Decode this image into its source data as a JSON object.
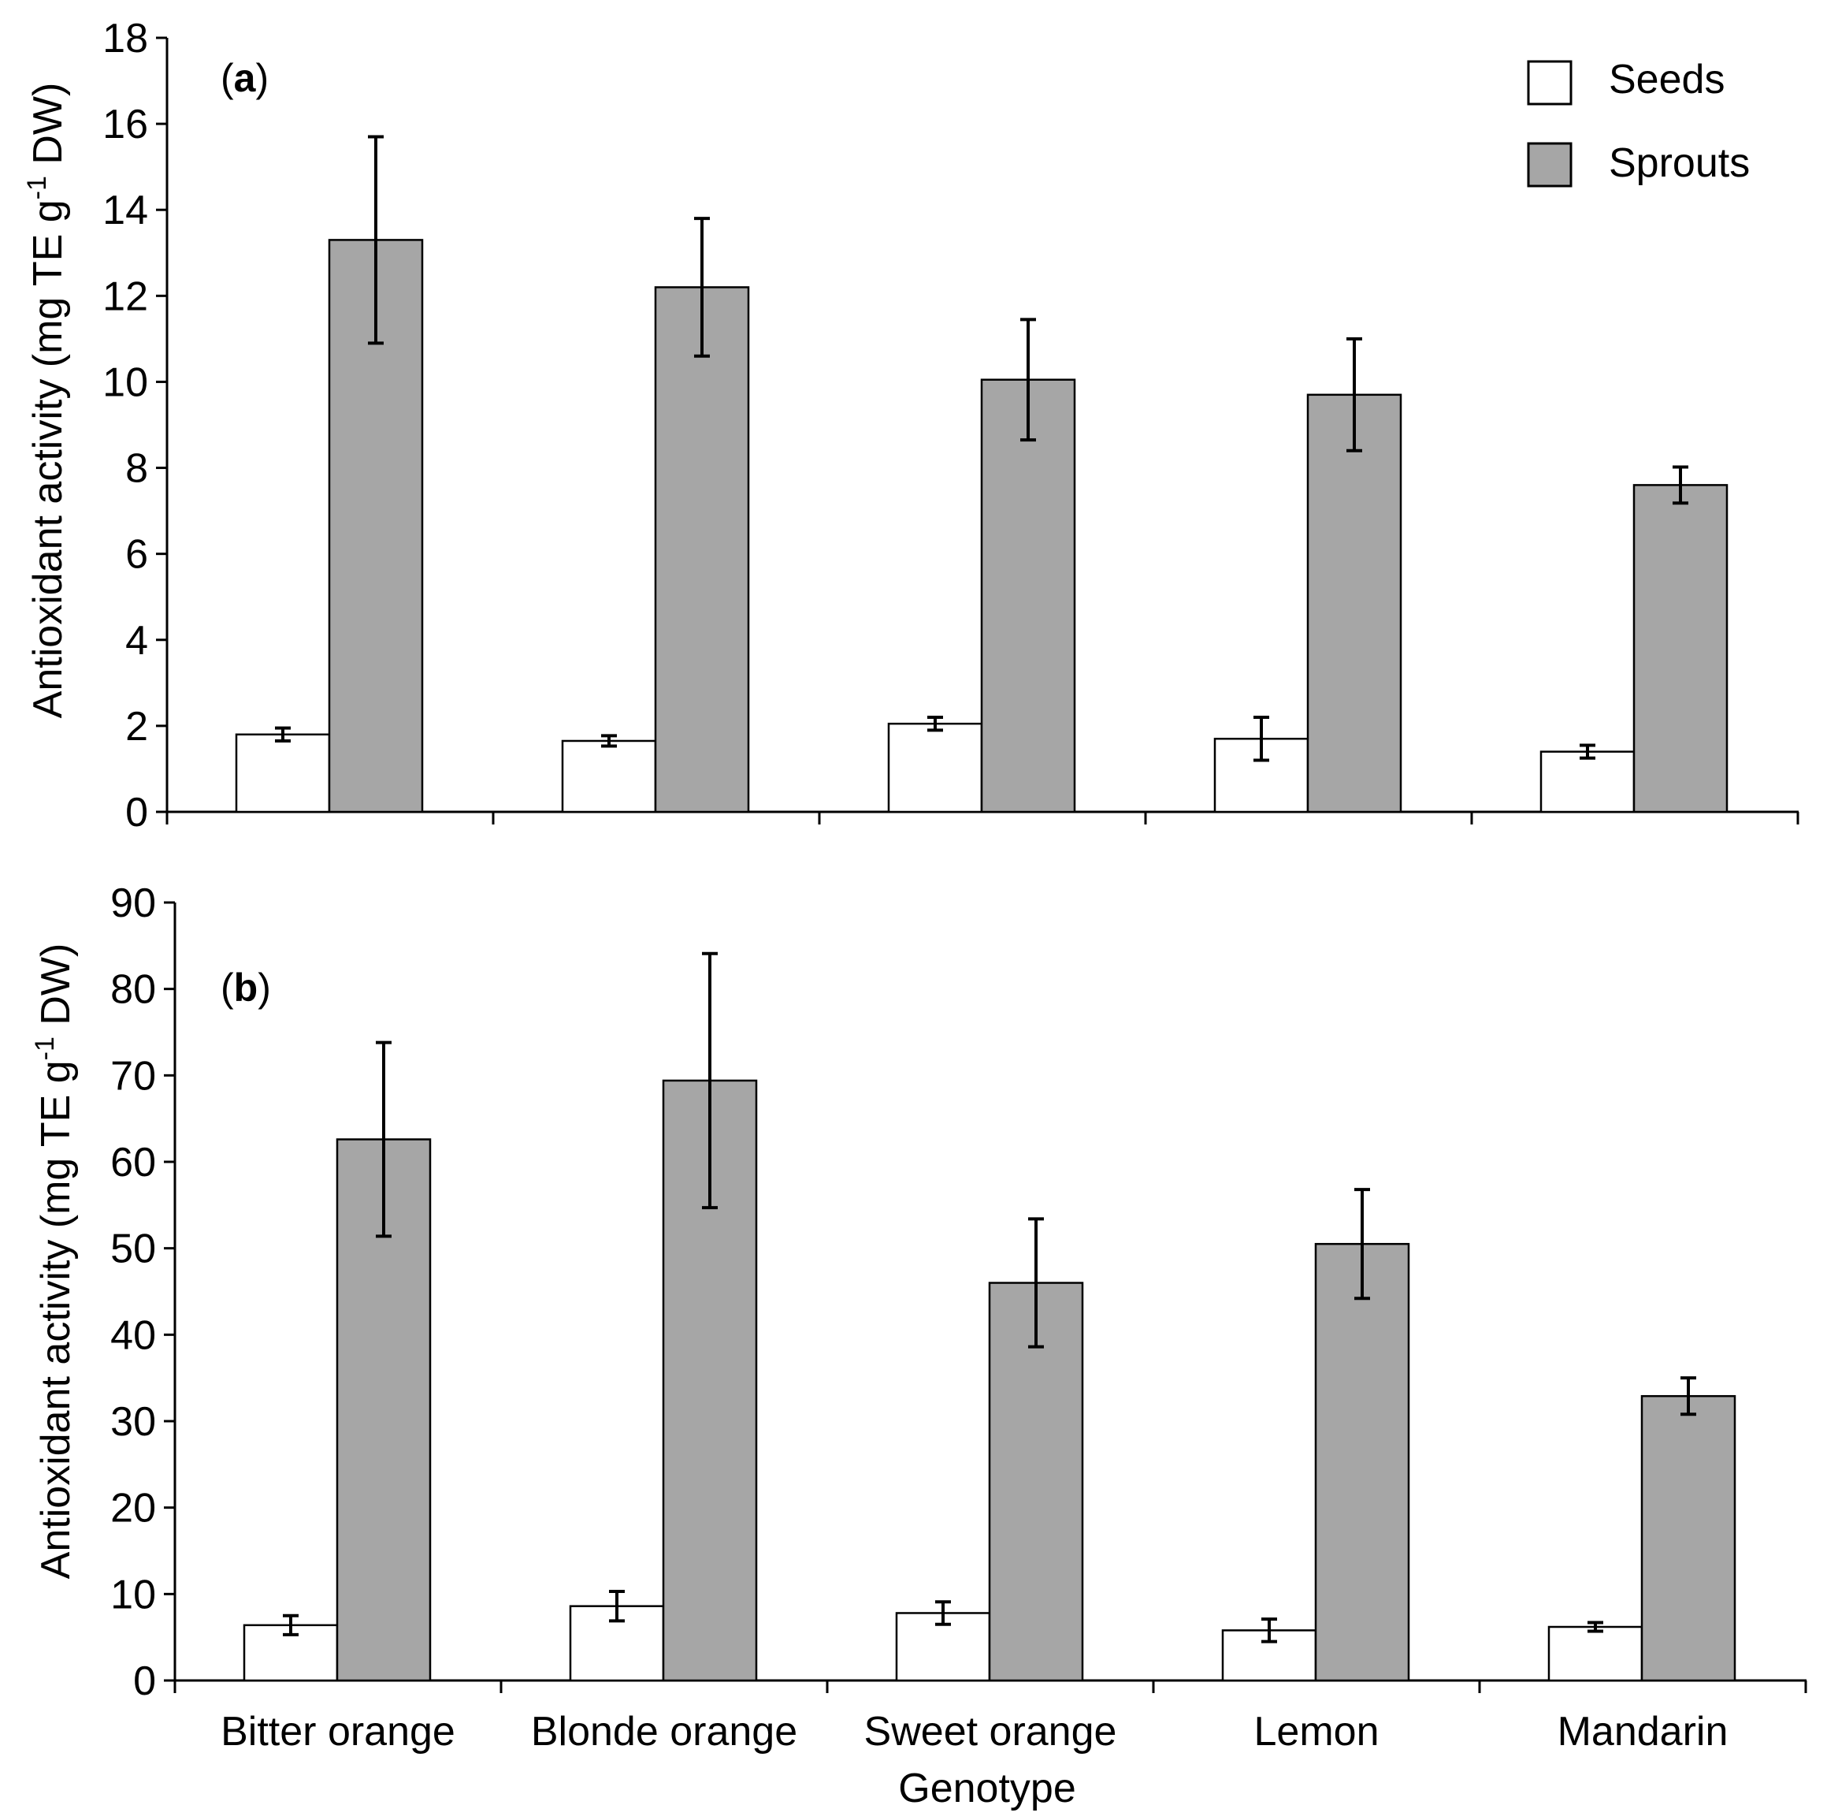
{
  "figure": {
    "xlabel": "Genotype",
    "categories": [
      "Bitter orange",
      "Blonde orange",
      "Sweet orange",
      "Lemon",
      "Mandarin"
    ],
    "legend": [
      {
        "name": "Seeds",
        "color": "#ffffff"
      },
      {
        "name": "Sprouts",
        "color": "#a6a6a6"
      }
    ]
  },
  "chart_data": [
    {
      "type": "bar",
      "panel": "a",
      "panel_label": "(a)",
      "ylabel_main": "Antioxidant activity (mg TE g",
      "ylabel_sup": "-1",
      "ylabel_end": " DW)",
      "ylim": [
        0,
        18
      ],
      "yticks": [
        0,
        2,
        4,
        6,
        8,
        10,
        12,
        14,
        16,
        18
      ],
      "ytick_labels": [
        "0",
        "2",
        "4",
        "6",
        "8",
        "10",
        "12",
        "14",
        "16",
        "18"
      ],
      "categories": [
        "Bitter orange",
        "Blonde orange",
        "Sweet orange",
        "Lemon",
        "Mandarin"
      ],
      "series": [
        {
          "name": "Seeds",
          "values": [
            1.8,
            1.65,
            2.05,
            1.7,
            1.4
          ],
          "errors": [
            0.15,
            0.12,
            0.15,
            0.5,
            0.15
          ]
        },
        {
          "name": "Sprouts",
          "values": [
            13.3,
            12.2,
            10.05,
            9.7,
            7.6
          ],
          "errors": [
            2.4,
            1.6,
            1.4,
            1.3,
            0.42
          ]
        }
      ]
    },
    {
      "type": "bar",
      "panel": "b",
      "panel_label": "(b)",
      "ylabel_main": "Antioxidant activity (mg TE g",
      "ylabel_sup": "-1",
      "ylabel_end": " DW)",
      "ylim": [
        0,
        90
      ],
      "yticks": [
        0,
        10,
        20,
        30,
        40,
        50,
        60,
        70,
        80,
        90
      ],
      "ytick_labels": [
        "0",
        "10",
        "20",
        "30",
        "40",
        "50",
        "60",
        "70",
        "80",
        "90"
      ],
      "categories": [
        "Bitter orange",
        "Blonde orange",
        "Sweet orange",
        "Lemon",
        "Mandarin"
      ],
      "series": [
        {
          "name": "Seeds",
          "values": [
            6.4,
            8.6,
            7.8,
            5.8,
            6.2
          ],
          "errors": [
            1.1,
            1.7,
            1.3,
            1.3,
            0.5
          ]
        },
        {
          "name": "Sprouts",
          "values": [
            62.6,
            69.4,
            46.0,
            50.5,
            32.9
          ],
          "errors": [
            11.2,
            14.7,
            7.4,
            6.3,
            2.1
          ]
        }
      ]
    }
  ]
}
